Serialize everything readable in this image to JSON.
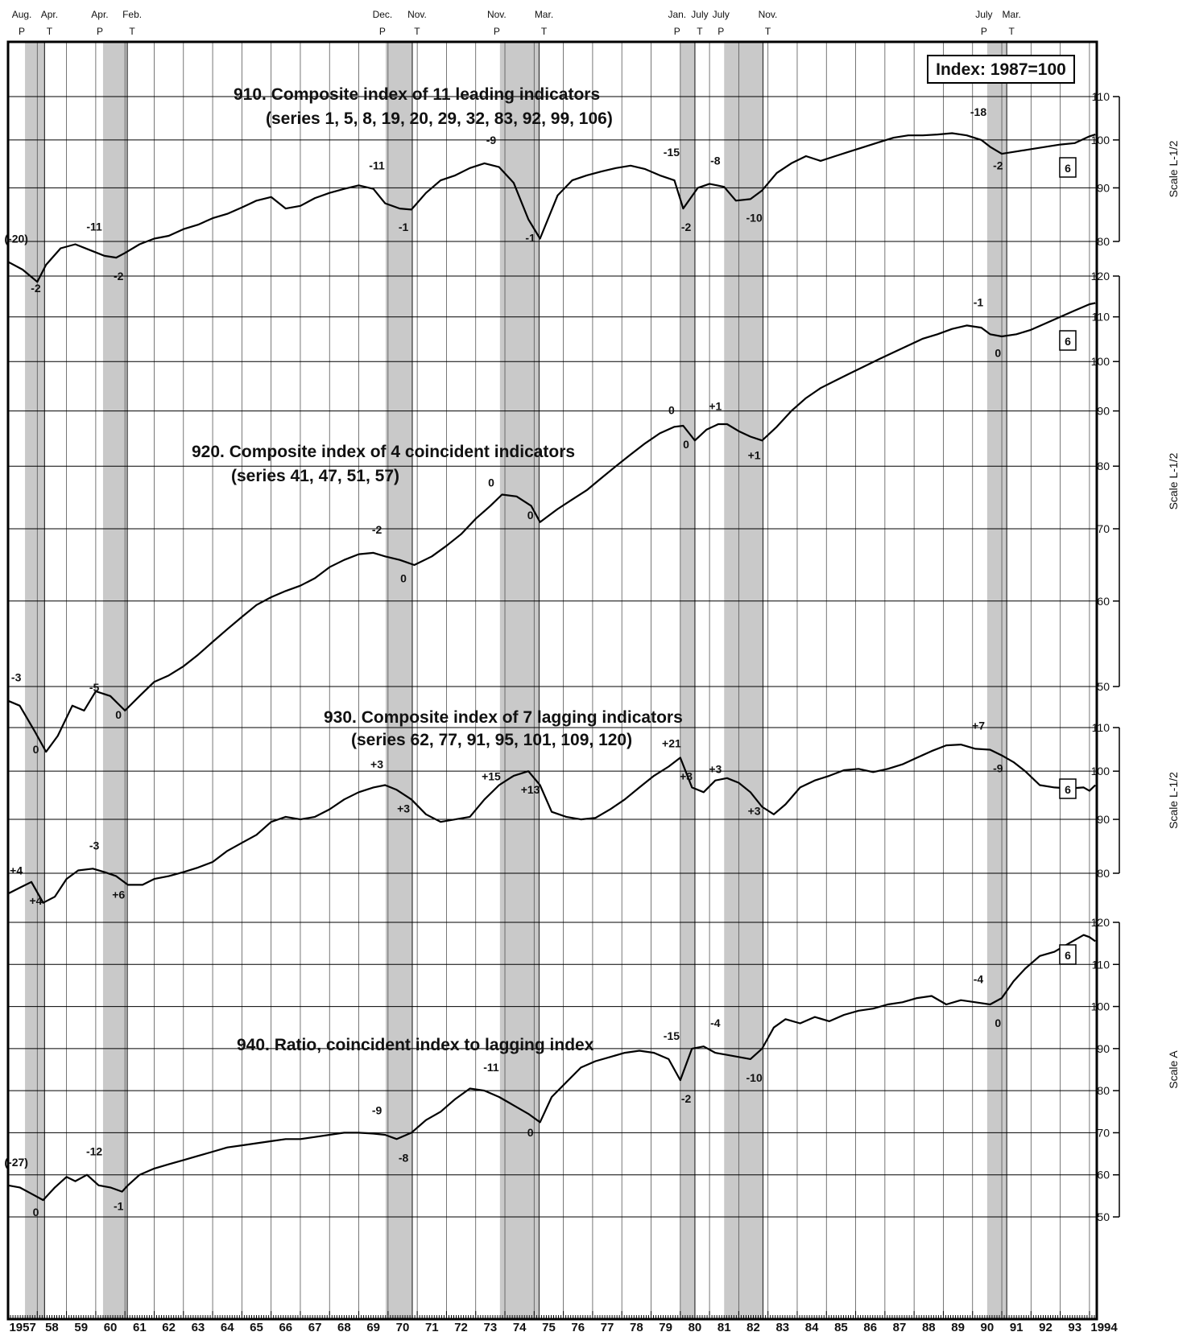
{
  "chart_data": {
    "type": "line",
    "index_label": "Index: 1987=100",
    "panel_badge": "6",
    "years": [
      "1957",
      "58",
      "59",
      "60",
      "61",
      "62",
      "63",
      "64",
      "65",
      "66",
      "67",
      "68",
      "69",
      "70",
      "71",
      "72",
      "73",
      "74",
      "75",
      "76",
      "77",
      "78",
      "79",
      "80",
      "81",
      "82",
      "83",
      "84",
      "85",
      "86",
      "87",
      "88",
      "89",
      "90",
      "91",
      "92",
      "93",
      "1994"
    ],
    "recessions": [
      {
        "peak": "Aug.",
        "trough": "Apr.",
        "start": 1957.58,
        "end": 1958.25
      },
      {
        "peak": "Apr.",
        "trough": "Feb.",
        "start": 1960.25,
        "end": 1961.08
      },
      {
        "peak": "Dec.",
        "trough": "Nov.",
        "start": 1969.92,
        "end": 1970.83
      },
      {
        "peak": "Nov.",
        "trough": "Mar.",
        "start": 1973.83,
        "end": 1975.17
      },
      {
        "peak": "Jan.",
        "trough": "July",
        "start": 1980.0,
        "end": 1980.5
      },
      {
        "peak": "July",
        "trough": "Nov.",
        "start": 1981.5,
        "end": 1982.83
      },
      {
        "peak": "July",
        "trough": "Mar.",
        "start": 1990.5,
        "end": 1991.17
      }
    ],
    "peak_letter": "P",
    "trough_letter": "T",
    "series": [
      {
        "name": "910. Composite index of 11 leading indicators",
        "subtitle": "(series 1, 5, 8, 19, 20, 29, 32, 83, 92, 99, 106)",
        "scale": "Scale L-1/2",
        "y_ticks": [
          80,
          90,
          100,
          110
        ],
        "y_range": [
          80,
          110
        ],
        "x": [
          1957.0,
          1957.5,
          1958.0,
          1958.3,
          1958.8,
          1959.3,
          1959.8,
          1960.3,
          1960.7,
          1961.0,
          1961.5,
          1962.0,
          1962.5,
          1963.0,
          1963.5,
          1964.0,
          1964.5,
          1965.0,
          1965.5,
          1966.0,
          1966.5,
          1967.0,
          1967.5,
          1968.0,
          1968.5,
          1969.0,
          1969.5,
          1969.9,
          1970.4,
          1970.8,
          1971.3,
          1971.8,
          1972.3,
          1972.8,
          1973.3,
          1973.8,
          1974.3,
          1974.8,
          1975.2,
          1975.8,
          1976.3,
          1976.8,
          1977.3,
          1977.8,
          1978.3,
          1978.8,
          1979.3,
          1979.8,
          1980.1,
          1980.6,
          1981.0,
          1981.5,
          1981.9,
          1982.4,
          1982.8,
          1983.3,
          1983.8,
          1984.3,
          1984.8,
          1985.3,
          1985.8,
          1986.3,
          1986.8,
          1987.3,
          1987.8,
          1988.3,
          1988.8,
          1989.3,
          1989.8,
          1990.3,
          1990.6,
          1991.0,
          1991.5,
          1992.0,
          1992.5,
          1993.0,
          1993.5,
          1994.0,
          1994.2
        ],
        "y": [
          76.5,
          75.2,
          73.2,
          76.0,
          78.8,
          79.5,
          78.5,
          77.5,
          77.2,
          78.0,
          79.5,
          80.5,
          81.0,
          82.2,
          83.0,
          84.2,
          85.0,
          86.2,
          87.5,
          88.2,
          86.0,
          86.5,
          88.0,
          89.0,
          89.8,
          90.5,
          89.8,
          87.0,
          86.0,
          85.8,
          89.0,
          91.5,
          92.5,
          94.0,
          95.0,
          94.2,
          91.0,
          84.0,
          80.5,
          88.5,
          91.5,
          92.5,
          93.3,
          94.0,
          94.5,
          93.8,
          92.5,
          91.5,
          86.0,
          90.0,
          90.8,
          90.2,
          87.5,
          87.8,
          89.5,
          93.0,
          95.0,
          96.5,
          95.5,
          96.5,
          97.5,
          98.5,
          99.5,
          100.5,
          101.0,
          101.0,
          101.2,
          101.5,
          101.0,
          100.0,
          98.5,
          97.0,
          97.5,
          98.0,
          98.5,
          99.0,
          99.3,
          100.8,
          101.2
        ],
        "lead_labels": [
          "(-20)",
          "-2",
          "-11",
          "-2",
          "-11",
          "-1",
          "-9",
          "-1",
          "-15",
          "-2",
          "-8",
          "-10",
          "-18",
          "-2"
        ]
      },
      {
        "name": "920. Composite index of 4 coincident indicators",
        "subtitle": "(series 41, 47, 51, 57)",
        "scale": "Scale L-1/2",
        "y_ticks": [
          50,
          60,
          70,
          80,
          90,
          100,
          110,
          120
        ],
        "y_range": [
          50,
          120
        ],
        "x": [
          1957.0,
          1957.4,
          1957.9,
          1958.3,
          1958.7,
          1959.2,
          1959.6,
          1960.0,
          1960.5,
          1961.0,
          1961.5,
          1962.0,
          1962.5,
          1963.0,
          1963.5,
          1964.0,
          1964.5,
          1965.0,
          1965.5,
          1966.0,
          1966.5,
          1967.0,
          1967.5,
          1968.0,
          1968.5,
          1969.0,
          1969.5,
          1969.9,
          1970.4,
          1970.9,
          1971.5,
          1972.0,
          1972.5,
          1973.0,
          1973.5,
          1973.9,
          1974.4,
          1974.9,
          1975.2,
          1975.8,
          1976.3,
          1976.8,
          1977.3,
          1977.8,
          1978.3,
          1978.8,
          1979.3,
          1979.8,
          1980.1,
          1980.5,
          1980.9,
          1981.3,
          1981.6,
          1982.0,
          1982.4,
          1982.8,
          1983.3,
          1983.8,
          1984.3,
          1984.8,
          1985.3,
          1985.8,
          1986.3,
          1986.8,
          1987.3,
          1987.8,
          1988.3,
          1988.8,
          1989.3,
          1989.8,
          1990.3,
          1990.6,
          1991.0,
          1991.5,
          1992.0,
          1992.5,
          1993.0,
          1993.5,
          1994.0,
          1994.2
        ],
        "y": [
          48.5,
          48.0,
          45.5,
          43.5,
          45.0,
          48.0,
          47.5,
          49.5,
          49.0,
          47.5,
          49.0,
          50.5,
          51.2,
          52.2,
          53.5,
          55.0,
          56.5,
          58.0,
          59.5,
          60.5,
          61.3,
          62.0,
          63.0,
          64.5,
          65.5,
          66.3,
          66.5,
          66.0,
          65.5,
          64.8,
          66.0,
          67.5,
          69.2,
          71.5,
          73.5,
          75.3,
          75.0,
          73.5,
          71.0,
          73.0,
          74.5,
          76.0,
          78.0,
          80.0,
          82.0,
          84.0,
          85.8,
          87.0,
          87.2,
          84.5,
          86.5,
          87.5,
          87.5,
          86.2,
          85.2,
          84.5,
          87.0,
          90.0,
          92.5,
          94.5,
          96.0,
          97.5,
          99.0,
          100.5,
          102.0,
          103.5,
          105.0,
          106.0,
          107.2,
          108.0,
          107.5,
          106.0,
          105.5,
          106.0,
          107.0,
          108.5,
          110.0,
          111.5,
          113.0,
          113.3
        ],
        "lead_labels": [
          "-3",
          "0",
          "-5",
          "0",
          "-2",
          "0",
          "0",
          "0",
          "0",
          "0",
          "+1",
          "+1",
          "-1",
          "0"
        ]
      },
      {
        "name": "930. Composite index of 7 lagging indicators",
        "subtitle": "(series 62, 77, 91, 95, 101, 109, 120)",
        "scale": "Scale L-1/2",
        "y_ticks": [
          80,
          90,
          100,
          110
        ],
        "y_range": [
          80,
          110
        ],
        "x": [
          1957.0,
          1957.4,
          1957.8,
          1958.2,
          1958.6,
          1959.0,
          1959.4,
          1959.9,
          1960.3,
          1960.7,
          1961.1,
          1961.6,
          1962.0,
          1962.5,
          1963.0,
          1963.5,
          1964.0,
          1964.5,
          1965.0,
          1965.5,
          1966.0,
          1966.5,
          1967.0,
          1967.5,
          1968.0,
          1968.5,
          1969.0,
          1969.5,
          1969.9,
          1970.3,
          1970.8,
          1971.3,
          1971.8,
          1972.3,
          1972.8,
          1973.3,
          1973.8,
          1974.3,
          1974.8,
          1975.2,
          1975.6,
          1976.1,
          1976.6,
          1977.1,
          1977.6,
          1978.1,
          1978.6,
          1979.1,
          1979.6,
          1980.0,
          1980.4,
          1980.8,
          1981.2,
          1981.6,
          1982.0,
          1982.4,
          1982.8,
          1983.2,
          1983.6,
          1984.1,
          1984.6,
          1985.1,
          1985.6,
          1986.1,
          1986.6,
          1987.1,
          1987.6,
          1988.1,
          1988.6,
          1989.1,
          1989.6,
          1990.1,
          1990.6,
          1991.0,
          1991.4,
          1991.8,
          1992.3,
          1992.8,
          1993.3,
          1993.8,
          1994.0,
          1994.2
        ],
        "y": [
          76.5,
          77.5,
          78.5,
          75.0,
          76.0,
          79.0,
          80.5,
          80.8,
          80.2,
          79.5,
          78.0,
          78.0,
          79.0,
          79.5,
          80.2,
          81.0,
          82.0,
          84.0,
          85.5,
          87.0,
          89.5,
          90.5,
          90.0,
          90.5,
          92.0,
          94.0,
          95.5,
          96.5,
          97.0,
          96.0,
          94.0,
          91.0,
          89.5,
          90.0,
          90.5,
          94.0,
          97.0,
          99.0,
          100.0,
          97.0,
          91.5,
          90.5,
          90.0,
          90.3,
          92.0,
          94.0,
          96.5,
          99.0,
          101.0,
          103.0,
          96.5,
          95.5,
          98.0,
          98.5,
          97.5,
          95.5,
          92.5,
          91.0,
          93.0,
          96.5,
          98.0,
          99.0,
          100.2,
          100.5,
          99.8,
          100.5,
          101.5,
          103.0,
          104.5,
          105.8,
          106.0,
          105.0,
          104.8,
          103.5,
          102.0,
          100.0,
          97.0,
          96.5,
          96.3,
          96.5,
          95.8,
          97.0
        ],
        "lead_labels": [
          "+4",
          "+4",
          "-3",
          "+6",
          "+3",
          "+3",
          "+15",
          "+13",
          "+21",
          "+3",
          "+3",
          "+3",
          "+7",
          "-9"
        ]
      },
      {
        "name": "940. Ratio, coincident index to lagging index",
        "subtitle": "",
        "scale": "Scale A",
        "y_ticks": [
          50,
          60,
          70,
          80,
          90,
          100,
          110,
          120
        ],
        "y_range": [
          50,
          120
        ],
        "x": [
          1957.0,
          1957.4,
          1957.8,
          1958.2,
          1958.6,
          1959.0,
          1959.3,
          1959.7,
          1960.1,
          1960.5,
          1960.9,
          1961.1,
          1961.5,
          1962.0,
          1962.5,
          1963.0,
          1963.5,
          1964.0,
          1964.5,
          1965.0,
          1965.5,
          1966.0,
          1966.5,
          1967.0,
          1967.5,
          1968.0,
          1968.5,
          1969.0,
          1969.5,
          1969.9,
          1970.3,
          1970.8,
          1971.3,
          1971.8,
          1972.3,
          1972.8,
          1973.3,
          1973.8,
          1974.3,
          1974.8,
          1975.2,
          1975.6,
          1976.1,
          1976.6,
          1977.1,
          1977.6,
          1978.1,
          1978.6,
          1979.1,
          1979.6,
          1980.0,
          1980.4,
          1980.8,
          1981.2,
          1981.6,
          1982.0,
          1982.4,
          1982.8,
          1983.2,
          1983.6,
          1984.1,
          1984.6,
          1985.1,
          1985.6,
          1986.1,
          1986.6,
          1987.1,
          1987.6,
          1988.1,
          1988.6,
          1989.1,
          1989.6,
          1990.1,
          1990.6,
          1991.0,
          1991.4,
          1991.8,
          1992.3,
          1992.8,
          1993.3,
          1993.8,
          1994.0,
          1994.2
        ],
        "y": [
          57.5,
          57.0,
          55.5,
          54.0,
          57.0,
          59.5,
          58.5,
          60.0,
          57.5,
          57.0,
          56.0,
          57.5,
          60.0,
          61.5,
          62.5,
          63.5,
          64.5,
          65.5,
          66.5,
          67.0,
          67.5,
          68.0,
          68.5,
          68.5,
          69.0,
          69.5,
          70.0,
          70.0,
          69.8,
          69.5,
          68.5,
          70.0,
          73.0,
          75.0,
          78.0,
          80.5,
          80.0,
          78.5,
          76.5,
          74.5,
          72.5,
          78.5,
          82.0,
          85.5,
          87.0,
          88.0,
          89.0,
          89.5,
          89.0,
          87.5,
          82.5,
          90.0,
          90.5,
          89.0,
          88.5,
          88.0,
          87.5,
          90.0,
          95.0,
          97.0,
          96.0,
          97.5,
          96.5,
          98.0,
          99.0,
          99.5,
          100.5,
          101.0,
          102.0,
          102.5,
          100.5,
          101.5,
          101.0,
          100.5,
          102.0,
          106.0,
          109.0,
          112.0,
          113.0,
          115.0,
          117.0,
          116.5,
          115.5
        ],
        "lead_labels": [
          "(-27)",
          "0",
          "-12",
          "-1",
          "-9",
          "-8",
          "-11",
          "0",
          "-15",
          "-2",
          "-4",
          "-10",
          "-4",
          "0"
        ]
      }
    ]
  }
}
